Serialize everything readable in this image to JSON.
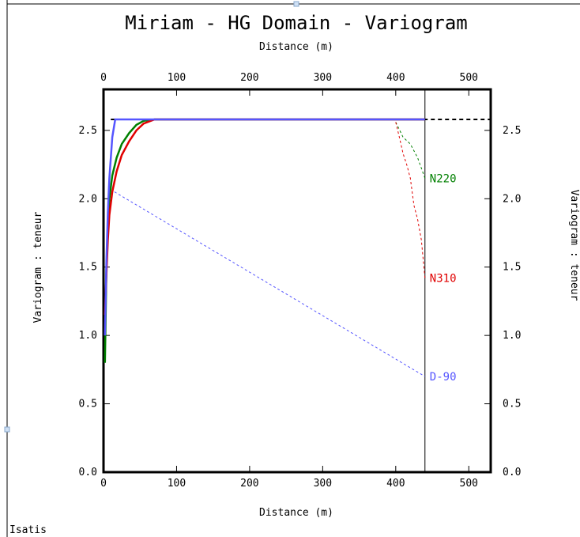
{
  "chart_data": {
    "type": "line",
    "title": "Miriam - HG Domain - Variogram",
    "xlabel": "Distance (m)",
    "ylabel": "Variogram : teneur",
    "footer": "Isatis",
    "xlim": [
      0,
      530
    ],
    "ylim": [
      0,
      2.8
    ],
    "x_ticks": [
      "0",
      "100",
      "200",
      "300",
      "400",
      "500"
    ],
    "y_ticks": [
      "0.0",
      "0.5",
      "1.0",
      "1.5",
      "2.0",
      "2.5"
    ],
    "sill": 2.58,
    "series": [
      {
        "name": "N220",
        "color": "#008000",
        "model": [
          [
            2,
            0.8
          ],
          [
            4,
            1.5
          ],
          [
            6,
            1.8
          ],
          [
            8,
            2.0
          ],
          [
            12,
            2.17
          ],
          [
            18,
            2.3
          ],
          [
            25,
            2.4
          ],
          [
            35,
            2.48
          ],
          [
            45,
            2.54
          ],
          [
            55,
            2.57
          ],
          [
            70,
            2.58
          ],
          [
            100,
            2.58
          ],
          [
            400,
            2.58
          ],
          [
            440,
            2.58
          ]
        ],
        "experimental": [
          [
            400,
            2.56
          ],
          [
            410,
            2.45
          ],
          [
            420,
            2.4
          ],
          [
            430,
            2.3
          ],
          [
            440,
            2.15
          ]
        ]
      },
      {
        "name": "N310",
        "color": "#e00000",
        "model": [
          [
            2,
            1.15
          ],
          [
            4,
            1.45
          ],
          [
            6,
            1.7
          ],
          [
            8,
            1.88
          ],
          [
            12,
            2.05
          ],
          [
            18,
            2.2
          ],
          [
            25,
            2.32
          ],
          [
            35,
            2.42
          ],
          [
            45,
            2.5
          ],
          [
            55,
            2.55
          ],
          [
            70,
            2.58
          ],
          [
            100,
            2.58
          ],
          [
            400,
            2.58
          ],
          [
            440,
            2.58
          ]
        ],
        "experimental": [
          [
            400,
            2.56
          ],
          [
            405,
            2.45
          ],
          [
            410,
            2.33
          ],
          [
            415,
            2.25
          ],
          [
            420,
            2.15
          ],
          [
            425,
            1.95
          ],
          [
            430,
            1.85
          ],
          [
            435,
            1.7
          ],
          [
            440,
            1.42
          ]
        ]
      },
      {
        "name": "D-90",
        "color": "#5555ff",
        "model": [
          [
            2,
            1.0
          ],
          [
            4,
            1.55
          ],
          [
            6,
            1.9
          ],
          [
            8,
            2.15
          ],
          [
            12,
            2.45
          ],
          [
            16,
            2.58
          ],
          [
            100,
            2.58
          ],
          [
            400,
            2.58
          ],
          [
            440,
            2.58
          ]
        ],
        "experimental": [
          [
            15,
            2.05
          ],
          [
            440,
            0.7
          ]
        ]
      }
    ],
    "vertical_line_x": 440,
    "grid": false
  }
}
